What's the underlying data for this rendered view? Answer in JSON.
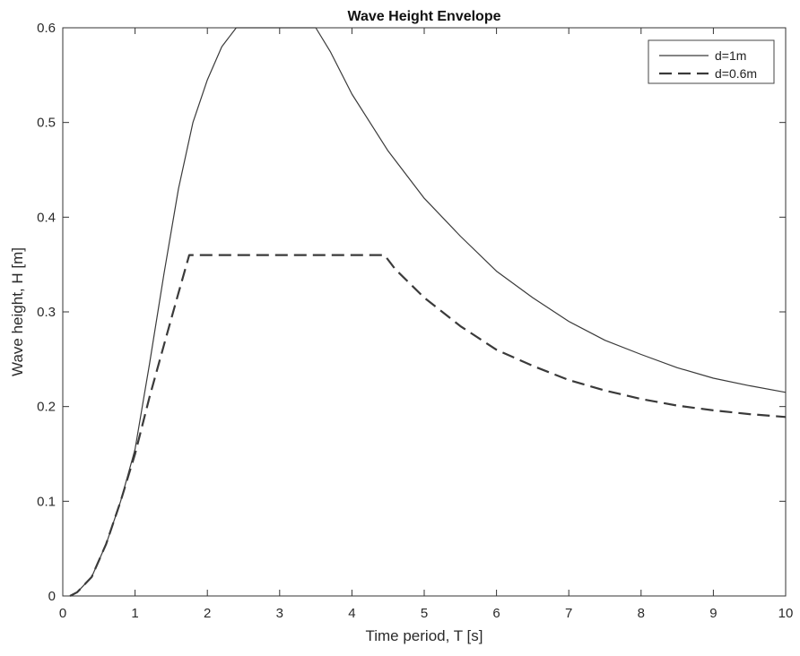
{
  "chart_data": {
    "type": "line",
    "title": "Wave Height Envelope",
    "xlabel": "Time period, T [s]",
    "ylabel": "Wave height, H [m]",
    "xlim": [
      0,
      10
    ],
    "ylim": [
      0,
      0.6
    ],
    "xticks": [
      "0",
      "1",
      "2",
      "3",
      "4",
      "5",
      "6",
      "7",
      "8",
      "9",
      "10"
    ],
    "yticks": [
      "0",
      "0.1",
      "0.2",
      "0.3",
      "0.4",
      "0.5",
      "0.6"
    ],
    "grid": false,
    "legend_position": "top-right",
    "series": [
      {
        "name": "d=1m",
        "style": "solid",
        "color": "#3a3a3a",
        "x": [
          0.1,
          0.2,
          0.4,
          0.6,
          0.8,
          1.0,
          1.2,
          1.4,
          1.6,
          1.8,
          2.0,
          2.2,
          2.4,
          2.6,
          2.8,
          3.0,
          3.2,
          3.4,
          3.5,
          3.7,
          4.0,
          4.5,
          5.0,
          5.5,
          6.0,
          6.5,
          7.0,
          7.5,
          8.0,
          8.5,
          9.0,
          9.5,
          10.0
        ],
        "y": [
          0.0,
          0.004,
          0.02,
          0.055,
          0.1,
          0.155,
          0.245,
          0.34,
          0.43,
          0.5,
          0.545,
          0.58,
          0.6,
          0.6,
          0.6,
          0.6,
          0.6,
          0.6,
          0.6,
          0.575,
          0.53,
          0.47,
          0.42,
          0.38,
          0.343,
          0.315,
          0.29,
          0.27,
          0.255,
          0.241,
          0.23,
          0.222,
          0.215
        ]
      },
      {
        "name": "d=0.6m",
        "style": "dashed",
        "color": "#3a3a3a",
        "x": [
          0.1,
          0.2,
          0.4,
          0.6,
          0.8,
          1.0,
          1.2,
          1.4,
          1.6,
          1.75,
          2.0,
          3.0,
          4.0,
          4.45,
          4.6,
          5.0,
          5.5,
          6.0,
          6.5,
          7.0,
          7.5,
          8.0,
          8.5,
          9.0,
          9.5,
          10.0
        ],
        "y": [
          0.0,
          0.004,
          0.02,
          0.055,
          0.1,
          0.15,
          0.21,
          0.265,
          0.32,
          0.36,
          0.36,
          0.36,
          0.36,
          0.36,
          0.345,
          0.315,
          0.285,
          0.26,
          0.243,
          0.228,
          0.217,
          0.208,
          0.201,
          0.196,
          0.192,
          0.189
        ]
      }
    ]
  }
}
